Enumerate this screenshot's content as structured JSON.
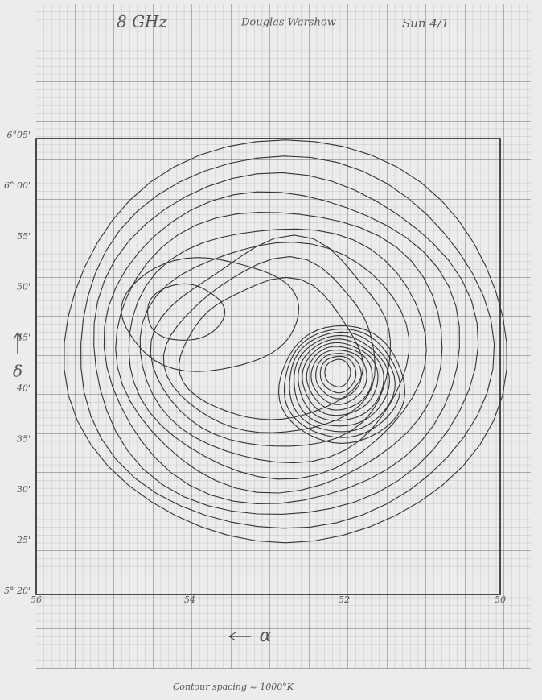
{
  "header": {
    "frequency": "8 GHz",
    "author": "Douglas Warshow",
    "date": "Sun 4/1"
  },
  "y_axis": {
    "symbol": "δ",
    "labels": [
      "6°05'",
      "6° 00'",
      "55'",
      "50'",
      "45'",
      "40'",
      "35'",
      "30'",
      "25'",
      "5° 20'"
    ]
  },
  "x_axis": {
    "symbol": "α",
    "labels": [
      "56",
      "54",
      "52",
      "50"
    ]
  },
  "footer": "Contour spacing ≈ 1000°K"
}
